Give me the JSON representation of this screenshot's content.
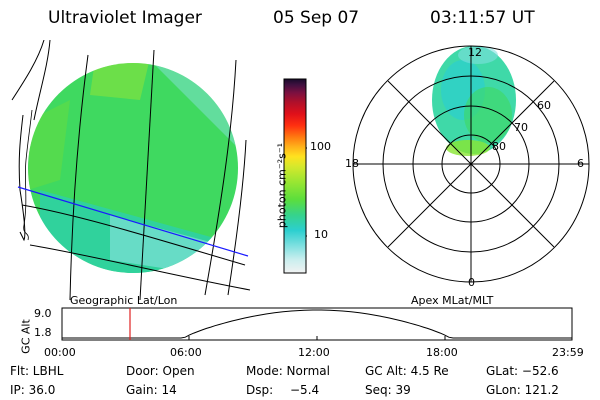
{
  "header": {
    "instrument": "Ultraviolet Imager",
    "date": "05 Sep 07",
    "time": "03:11:57 UT"
  },
  "geo_map": {
    "label": "Geographic Lat/Lon"
  },
  "colorbar": {
    "label": "photon cm⁻²s⁻¹",
    "ticks": [
      "100",
      "10"
    ],
    "scale": "log",
    "colors": [
      "#e8e8e8",
      "#c9eeee",
      "#7fe0e0",
      "#2ccfcf",
      "#36d38a",
      "#5cde3c",
      "#9ae632",
      "#d6e82c",
      "#ffe21f",
      "#ffb21a",
      "#ff7a10",
      "#ff3010",
      "#e0101a",
      "#b0102a",
      "#7a1040",
      "#401040",
      "#180a2a"
    ]
  },
  "polar_map": {
    "label": "Apex MLat/MLT",
    "mlt_labels": {
      "top": "12",
      "left": "18",
      "right": "6",
      "bottom": "0"
    },
    "lat_labels": [
      "60",
      "70",
      "80"
    ]
  },
  "altitude_plot": {
    "ylabel": "GC Alt",
    "yticks": [
      "9.0",
      "1.8"
    ],
    "xticks": [
      "00:00",
      "06:00",
      "12:00",
      "18:00",
      "23:59"
    ],
    "current_time_hours": 3.2
  },
  "info": {
    "filter": "Flt: LBHL",
    "door": "Door: Open",
    "mode": "Mode: Normal",
    "gc_alt": "GC Alt: 4.5 Re",
    "glat": "GLat: −52.6",
    "ip": "IP: 36.0",
    "gain": "Gain: 14",
    "dsp_label": "Dsp:",
    "dsp_value": "−5.4",
    "seq": "Seq: 39",
    "glon": "GLon: 121.2"
  }
}
